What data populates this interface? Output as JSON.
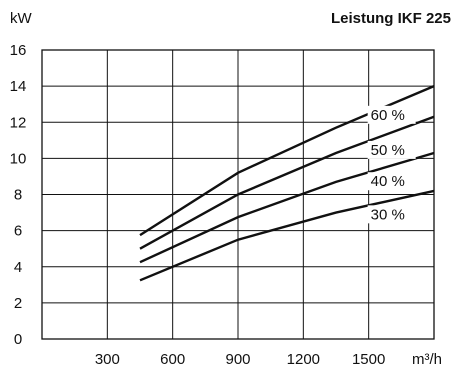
{
  "chart_data": {
    "type": "line",
    "title": "Leistung IKF 225",
    "ylabel": "kW",
    "xlabel": "m³/h",
    "xlim": [
      0,
      1800
    ],
    "ylim": [
      0,
      16
    ],
    "x_ticks": [
      300,
      600,
      900,
      1200,
      1500
    ],
    "x_tick_labels": [
      "300",
      "600",
      "900",
      "1200",
      "1500"
    ],
    "y_ticks": [
      0,
      2,
      4,
      6,
      8,
      10,
      12,
      14,
      16
    ],
    "y_tick_labels": [
      "0",
      "2",
      "4",
      "6",
      "8",
      "10",
      "12",
      "14",
      "16"
    ],
    "grid": true,
    "series": [
      {
        "name": "60 %",
        "x": [
          450,
          900,
          1350,
          1800
        ],
        "y": [
          5.75,
          9.2,
          11.7,
          14.0
        ]
      },
      {
        "name": "50 %",
        "x": [
          450,
          900,
          1350,
          1800
        ],
        "y": [
          5.0,
          8.0,
          10.3,
          12.3
        ]
      },
      {
        "name": "40 %",
        "x": [
          450,
          900,
          1350,
          1800
        ],
        "y": [
          4.25,
          6.75,
          8.7,
          10.3
        ]
      },
      {
        "name": "30 %",
        "x": [
          450,
          900,
          1350,
          1800
        ],
        "y": [
          3.25,
          5.5,
          7.0,
          8.2
        ]
      }
    ]
  }
}
